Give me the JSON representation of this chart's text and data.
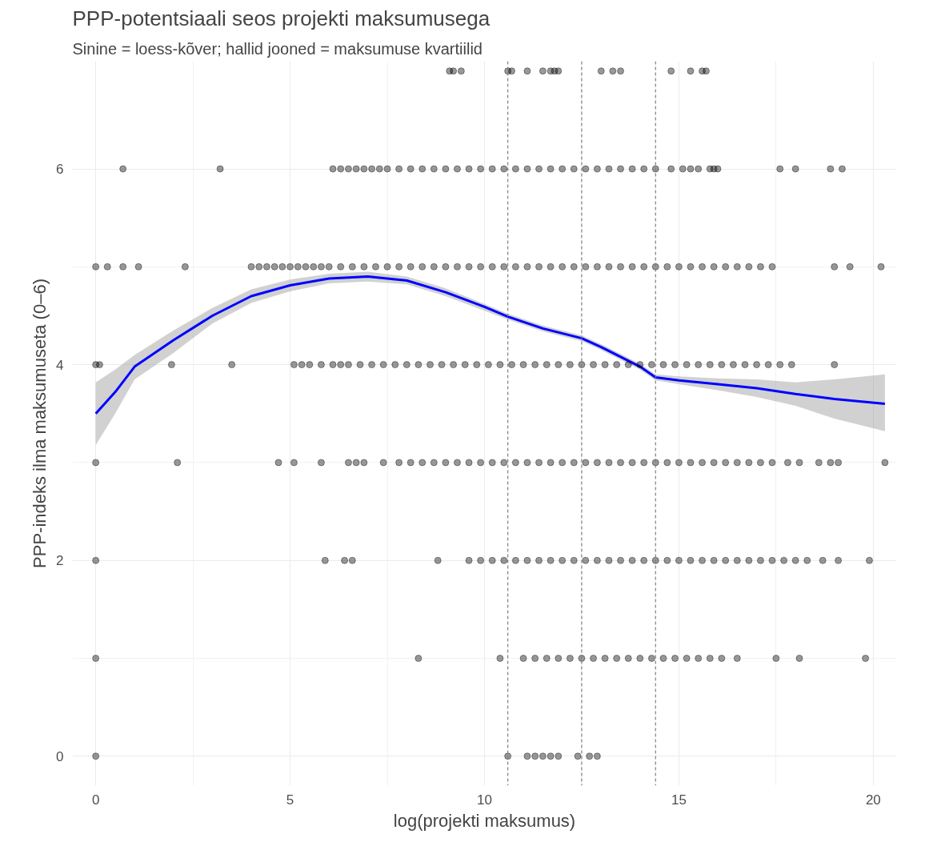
{
  "chart_data": {
    "type": "scatter",
    "title": "PPP-potentsiaali seos projekti maksumusega",
    "subtitle": "Sinine = loess-kõver; hallid jooned = maksumuse kvartiilid",
    "xlabel": "log(projekti maksumus)",
    "ylabel": "PPP-indeks ilma maksumuseta (0–6)",
    "xlim": [
      -0.6,
      20.6
    ],
    "ylim": [
      -0.3,
      7.1
    ],
    "xticks": [
      0,
      5,
      10,
      15,
      20
    ],
    "yticks": [
      0,
      2,
      4,
      6
    ],
    "grid": true,
    "marker": "circle",
    "series": [
      {
        "color": "#000000",
        "x": [
          9.1,
          9.2,
          9.4,
          10.6,
          10.7,
          11.1,
          11.5,
          11.7,
          11.8,
          11.9,
          13.0,
          13.3,
          13.5,
          14.8,
          15.3,
          15.6,
          15.7
        ],
        "values": [
          7,
          7,
          7,
          7,
          7,
          7,
          7,
          7,
          7,
          7,
          7,
          7,
          7,
          7,
          7,
          7,
          7
        ]
      },
      {
        "color": "#000000",
        "x": [
          0.7,
          3.2,
          6.1,
          6.3,
          6.5,
          6.7,
          6.9,
          7.1,
          7.3,
          7.5,
          7.8,
          8.1,
          8.4,
          8.7,
          9.0,
          9.3,
          9.6,
          9.9,
          10.2,
          10.5,
          10.8,
          11.1,
          11.4,
          11.7,
          12.0,
          12.3,
          12.6,
          12.9,
          13.2,
          13.5,
          13.8,
          14.1,
          14.4,
          14.8,
          15.1,
          15.3,
          15.5,
          15.8,
          15.9,
          16.0,
          17.6,
          18.0,
          18.9,
          19.2
        ],
        "values": [
          6,
          6,
          6,
          6,
          6,
          6,
          6,
          6,
          6,
          6,
          6,
          6,
          6,
          6,
          6,
          6,
          6,
          6,
          6,
          6,
          6,
          6,
          6,
          6,
          6,
          6,
          6,
          6,
          6,
          6,
          6,
          6,
          6,
          6,
          6,
          6,
          6,
          6,
          6,
          6,
          6,
          6,
          6,
          6
        ]
      },
      {
        "color": "#000000",
        "x": [
          0,
          0.3,
          0.7,
          1.1,
          2.3,
          4.0,
          4.2,
          4.4,
          4.6,
          4.8,
          5.0,
          5.2,
          5.4,
          5.6,
          5.8,
          6.0,
          6.3,
          6.6,
          6.9,
          7.2,
          7.5,
          7.8,
          8.1,
          8.4,
          8.7,
          9.0,
          9.3,
          9.6,
          9.9,
          10.2,
          10.5,
          10.8,
          11.1,
          11.4,
          11.7,
          12.0,
          12.3,
          12.6,
          12.9,
          13.2,
          13.5,
          13.8,
          14.1,
          14.4,
          14.7,
          15.0,
          15.3,
          15.6,
          15.9,
          16.2,
          16.5,
          16.8,
          17.1,
          17.4,
          19.0,
          19.4,
          20.2
        ],
        "values": [
          5,
          5,
          5,
          5,
          5,
          5,
          5,
          5,
          5,
          5,
          5,
          5,
          5,
          5,
          5,
          5,
          5,
          5,
          5,
          5,
          5,
          5,
          5,
          5,
          5,
          5,
          5,
          5,
          5,
          5,
          5,
          5,
          5,
          5,
          5,
          5,
          5,
          5,
          5,
          5,
          5,
          5,
          5,
          5,
          5,
          5,
          5,
          5,
          5,
          5,
          5,
          5,
          5,
          5,
          5,
          5,
          5
        ]
      },
      {
        "color": "#000000",
        "x": [
          0,
          0.1,
          1.95,
          3.5,
          5.1,
          5.3,
          5.5,
          5.8,
          6.1,
          6.3,
          6.5,
          6.8,
          7.1,
          7.4,
          7.7,
          8.0,
          8.3,
          8.6,
          8.9,
          9.2,
          9.5,
          9.8,
          10.1,
          10.4,
          10.7,
          11.0,
          11.3,
          11.6,
          11.9,
          12.2,
          12.5,
          12.8,
          13.1,
          13.4,
          13.7,
          14.0,
          14.3,
          14.6,
          14.9,
          15.2,
          15.5,
          15.8,
          16.1,
          16.4,
          16.7,
          17.0,
          17.3,
          17.6,
          17.9,
          19.0
        ],
        "values": [
          4,
          4,
          4,
          4,
          4,
          4,
          4,
          4,
          4,
          4,
          4,
          4,
          4,
          4,
          4,
          4,
          4,
          4,
          4,
          4,
          4,
          4,
          4,
          4,
          4,
          4,
          4,
          4,
          4,
          4,
          4,
          4,
          4,
          4,
          4,
          4,
          4,
          4,
          4,
          4,
          4,
          4,
          4,
          4,
          4,
          4,
          4,
          4,
          4,
          4
        ]
      },
      {
        "color": "#000000",
        "x": [
          0,
          2.1,
          4.7,
          5.1,
          5.8,
          6.5,
          6.7,
          6.9,
          7.4,
          7.8,
          8.1,
          8.4,
          8.7,
          9.0,
          9.3,
          9.6,
          9.9,
          10.2,
          10.5,
          10.8,
          11.1,
          11.4,
          11.7,
          12.0,
          12.3,
          12.6,
          12.9,
          13.2,
          13.5,
          13.8,
          14.1,
          14.4,
          14.7,
          15.0,
          15.3,
          15.6,
          15.9,
          16.2,
          16.5,
          16.8,
          17.1,
          17.4,
          17.8,
          18.1,
          18.6,
          18.9,
          19.1,
          20.3
        ],
        "values": [
          3,
          3,
          3,
          3,
          3,
          3,
          3,
          3,
          3,
          3,
          3,
          3,
          3,
          3,
          3,
          3,
          3,
          3,
          3,
          3,
          3,
          3,
          3,
          3,
          3,
          3,
          3,
          3,
          3,
          3,
          3,
          3,
          3,
          3,
          3,
          3,
          3,
          3,
          3,
          3,
          3,
          3,
          3,
          3,
          3,
          3,
          3,
          3
        ]
      },
      {
        "color": "#000000",
        "x": [
          0,
          5.9,
          6.4,
          6.6,
          8.8,
          9.6,
          9.9,
          10.2,
          10.5,
          10.8,
          11.1,
          11.4,
          11.7,
          12.0,
          12.3,
          12.6,
          12.9,
          13.2,
          13.5,
          13.8,
          14.1,
          14.4,
          14.7,
          15.0,
          15.3,
          15.6,
          15.9,
          16.2,
          16.5,
          16.8,
          17.1,
          17.4,
          17.7,
          18.0,
          18.3,
          18.7,
          19.1,
          19.9
        ],
        "values": [
          2,
          2,
          2,
          2,
          2,
          2,
          2,
          2,
          2,
          2,
          2,
          2,
          2,
          2,
          2,
          2,
          2,
          2,
          2,
          2,
          2,
          2,
          2,
          2,
          2,
          2,
          2,
          2,
          2,
          2,
          2,
          2,
          2,
          2,
          2,
          2,
          2,
          2
        ]
      },
      {
        "color": "#000000",
        "x": [
          0,
          8.3,
          10.4,
          11.0,
          11.3,
          11.6,
          11.9,
          12.2,
          12.5,
          12.8,
          13.1,
          13.4,
          13.7,
          14.0,
          14.3,
          14.6,
          14.9,
          15.2,
          15.5,
          15.8,
          16.1,
          16.5,
          17.5,
          18.1,
          19.8
        ],
        "values": [
          1,
          1,
          1,
          1,
          1,
          1,
          1,
          1,
          1,
          1,
          1,
          1,
          1,
          1,
          1,
          1,
          1,
          1,
          1,
          1,
          1,
          1,
          1,
          1,
          1
        ]
      },
      {
        "color": "#000000",
        "x": [
          0,
          10.6,
          11.1,
          11.3,
          11.5,
          11.7,
          11.9,
          12.4,
          12.7,
          12.9
        ],
        "values": [
          0,
          0,
          0,
          0,
          0,
          0,
          0,
          0,
          0,
          0
        ]
      },
      {
        "type": "line",
        "color": "#0000ff",
        "marker": "none",
        "line_style": "solid",
        "x": [
          0,
          0.5,
          1,
          2,
          3,
          4,
          5,
          6,
          7,
          8,
          9,
          10,
          10.6,
          11.5,
          12.5,
          13,
          14,
          14.4,
          15,
          16,
          17,
          18,
          19,
          20.3
        ],
        "values": [
          3.5,
          3.72,
          3.98,
          4.25,
          4.5,
          4.7,
          4.81,
          4.88,
          4.9,
          4.86,
          4.74,
          4.59,
          4.49,
          4.37,
          4.27,
          4.18,
          3.98,
          3.87,
          3.84,
          3.8,
          3.76,
          3.7,
          3.65,
          3.6
        ],
        "lower": [
          3.18,
          3.5,
          3.85,
          4.12,
          4.42,
          4.63,
          4.75,
          4.83,
          4.85,
          4.82,
          4.7,
          4.55,
          4.46,
          4.34,
          4.24,
          4.15,
          3.95,
          3.84,
          3.8,
          3.74,
          3.67,
          3.58,
          3.45,
          3.32
        ],
        "upper": [
          3.82,
          3.95,
          4.1,
          4.35,
          4.58,
          4.77,
          4.87,
          4.93,
          4.95,
          4.9,
          4.78,
          4.62,
          4.52,
          4.4,
          4.3,
          4.21,
          4.01,
          3.9,
          3.88,
          3.86,
          3.85,
          3.82,
          3.85,
          3.9
        ]
      }
    ],
    "ref_lines": [
      {
        "axis": "x",
        "value": 10.6,
        "color": "#808080",
        "line_style": "dashed"
      },
      {
        "axis": "x",
        "value": 12.5,
        "color": "#808080",
        "line_style": "dashed"
      },
      {
        "axis": "x",
        "value": 14.4,
        "color": "#808080",
        "line_style": "dashed"
      }
    ]
  }
}
